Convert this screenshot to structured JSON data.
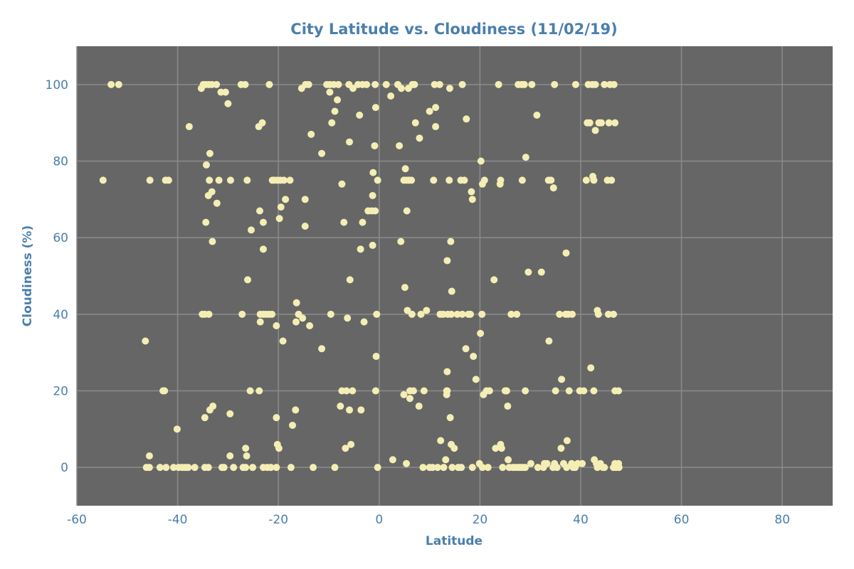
{
  "chart_data": {
    "type": "scatter",
    "title": "City Latitude vs. Cloudiness (11/02/19)",
    "xlabel": "Latitude",
    "ylabel": "Cloudiness (%)",
    "xlim": [
      -60,
      90
    ],
    "ylim": [
      -10,
      110
    ],
    "xticks": [
      -60,
      -40,
      -20,
      0,
      20,
      40,
      60,
      80
    ],
    "yticks": [
      0,
      20,
      40,
      60,
      80,
      100
    ],
    "grid": true,
    "colors": {
      "plot_background": "#666666",
      "grid": "#8c8c8c",
      "marker": "#f5eeb4",
      "text": "#4a7fac"
    },
    "points": [
      [
        -53.2,
        100
      ],
      [
        -51.7,
        100
      ],
      [
        -54.8,
        75
      ],
      [
        -46.4,
        33
      ],
      [
        -46.2,
        0
      ],
      [
        -45.6,
        3
      ],
      [
        -45.5,
        75
      ],
      [
        -45.6,
        0
      ],
      [
        -43.5,
        0
      ],
      [
        -42.9,
        20
      ],
      [
        -42.6,
        20
      ],
      [
        -42.4,
        75
      ],
      [
        -41.8,
        75
      ],
      [
        -42.3,
        0
      ],
      [
        -40.8,
        0
      ],
      [
        -40.1,
        10
      ],
      [
        -39.8,
        0
      ],
      [
        -39.1,
        0
      ],
      [
        -38.5,
        0
      ],
      [
        -37.9,
        0
      ],
      [
        -37.7,
        89
      ],
      [
        -36.6,
        0
      ],
      [
        -35.3,
        99
      ],
      [
        -34.9,
        100
      ],
      [
        -34.4,
        100
      ],
      [
        -33.8,
        100
      ],
      [
        -33.2,
        100
      ],
      [
        -32.3,
        100
      ],
      [
        -31.4,
        98
      ],
      [
        -30.5,
        98
      ],
      [
        -30.0,
        95
      ],
      [
        -27.4,
        100
      ],
      [
        -26.6,
        100
      ],
      [
        -21.8,
        100
      ],
      [
        -34.3,
        79
      ],
      [
        -33.6,
        82
      ],
      [
        -33.7,
        75
      ],
      [
        -33.9,
        71
      ],
      [
        -33.2,
        72
      ],
      [
        -32.2,
        69
      ],
      [
        -31.8,
        75
      ],
      [
        -29.5,
        75
      ],
      [
        -26.2,
        75
      ],
      [
        -34.4,
        64
      ],
      [
        -33.1,
        59
      ],
      [
        -35.1,
        40
      ],
      [
        -34.6,
        40
      ],
      [
        -33.8,
        40
      ],
      [
        -34.6,
        13
      ],
      [
        -33.6,
        15
      ],
      [
        -33.0,
        16
      ],
      [
        -29.6,
        14
      ],
      [
        -34.6,
        0
      ],
      [
        -33.9,
        0
      ],
      [
        -31.2,
        0
      ],
      [
        -30.8,
        0
      ],
      [
        -29.6,
        3
      ],
      [
        -28.9,
        0
      ],
      [
        -27.0,
        0
      ],
      [
        -26.5,
        0
      ],
      [
        -26.5,
        5
      ],
      [
        -26.3,
        3
      ],
      [
        -25.1,
        0
      ],
      [
        -27.2,
        40
      ],
      [
        -26.1,
        49
      ],
      [
        -25.4,
        62
      ],
      [
        -25.6,
        20
      ],
      [
        -23.9,
        89
      ],
      [
        -23.2,
        90
      ],
      [
        -23.7,
        67
      ],
      [
        -23.0,
        64
      ],
      [
        -23.0,
        57
      ],
      [
        -23.6,
        40
      ],
      [
        -23.0,
        40
      ],
      [
        -22.5,
        40
      ],
      [
        -21.9,
        40
      ],
      [
        -21.3,
        40
      ],
      [
        -23.6,
        38
      ],
      [
        -23.8,
        20
      ],
      [
        -23.0,
        0
      ],
      [
        -22.2,
        0
      ],
      [
        -21.5,
        0
      ],
      [
        -20.4,
        0
      ],
      [
        -21.2,
        75
      ],
      [
        -20.8,
        75
      ],
      [
        -20.2,
        75
      ],
      [
        -19.6,
        75
      ],
      [
        -18.9,
        75
      ],
      [
        -17.7,
        75
      ],
      [
        -18.6,
        70
      ],
      [
        -19.5,
        68
      ],
      [
        -19.8,
        65
      ],
      [
        -20.4,
        37
      ],
      [
        -19.1,
        33
      ],
      [
        -20.4,
        13
      ],
      [
        -20.2,
        6
      ],
      [
        -19.9,
        5
      ],
      [
        -17.5,
        0
      ],
      [
        -17.2,
        11
      ],
      [
        -16.6,
        15
      ],
      [
        -16.4,
        43
      ],
      [
        -16.5,
        38
      ],
      [
        -16.0,
        40
      ],
      [
        -15.2,
        39
      ],
      [
        -15.4,
        99
      ],
      [
        -14.6,
        100
      ],
      [
        -14.0,
        100
      ],
      [
        -14.7,
        70
      ],
      [
        -14.7,
        63
      ],
      [
        -13.5,
        87
      ],
      [
        -13.8,
        37
      ],
      [
        -13.1,
        0
      ],
      [
        -11.4,
        82
      ],
      [
        -11.4,
        31
      ],
      [
        -10.4,
        100
      ],
      [
        -9.8,
        100
      ],
      [
        -9.8,
        98
      ],
      [
        -9.0,
        100
      ],
      [
        -8.1,
        100
      ],
      [
        -8.8,
        93
      ],
      [
        -8.3,
        96
      ],
      [
        -9.4,
        90
      ],
      [
        -9.6,
        40
      ],
      [
        -8.8,
        0
      ],
      [
        -7.7,
        16
      ],
      [
        -7.4,
        74
      ],
      [
        -7.0,
        64
      ],
      [
        -7.4,
        20
      ],
      [
        -6.5,
        20
      ],
      [
        -6.3,
        39
      ],
      [
        -6.7,
        5
      ],
      [
        -6.0,
        100
      ],
      [
        -5.9,
        85
      ],
      [
        -5.8,
        49
      ],
      [
        -5.9,
        15
      ],
      [
        -5.6,
        6
      ],
      [
        -5.3,
        20
      ],
      [
        -5.2,
        99
      ],
      [
        -4.2,
        100
      ],
      [
        -3.9,
        92
      ],
      [
        -3.3,
        100
      ],
      [
        -2.5,
        100
      ],
      [
        -3.3,
        64
      ],
      [
        -3.7,
        57
      ],
      [
        -3.0,
        38
      ],
      [
        -3.6,
        15
      ],
      [
        -2.2,
        67
      ],
      [
        -1.3,
        71
      ],
      [
        -1.2,
        77
      ],
      [
        -1.5,
        67
      ],
      [
        -0.8,
        67
      ],
      [
        -0.9,
        84
      ],
      [
        -0.7,
        94
      ],
      [
        -0.8,
        100
      ],
      [
        -1.3,
        58
      ],
      [
        -0.3,
        75
      ],
      [
        -0.7,
        20
      ],
      [
        -0.6,
        29
      ],
      [
        -0.5,
        40
      ],
      [
        -0.3,
        0
      ],
      [
        1.4,
        100
      ],
      [
        2.3,
        97
      ],
      [
        2.7,
        2
      ],
      [
        3.7,
        100
      ],
      [
        4.0,
        84
      ],
      [
        4.4,
        99
      ],
      [
        4.3,
        59
      ],
      [
        4.9,
        75
      ],
      [
        5.4,
        75
      ],
      [
        5.2,
        78
      ],
      [
        5.5,
        67
      ],
      [
        5.9,
        75
      ],
      [
        6.4,
        75
      ],
      [
        5.1,
        47
      ],
      [
        4.9,
        19
      ],
      [
        5.6,
        41
      ],
      [
        6.1,
        20
      ],
      [
        6.1,
        18
      ],
      [
        5.4,
        1
      ],
      [
        6.8,
        20
      ],
      [
        6.5,
        40
      ],
      [
        6.6,
        100
      ],
      [
        7.0,
        100
      ],
      [
        7.2,
        90
      ],
      [
        5.8,
        99
      ],
      [
        7.9,
        16
      ],
      [
        8.3,
        40
      ],
      [
        8.0,
        86
      ],
      [
        8.9,
        20
      ],
      [
        9.4,
        41
      ],
      [
        8.7,
        0
      ],
      [
        10.0,
        93
      ],
      [
        10.0,
        0
      ],
      [
        10.6,
        0
      ],
      [
        11.2,
        94
      ],
      [
        11.2,
        89
      ],
      [
        10.8,
        75
      ],
      [
        11.0,
        100
      ],
      [
        11.6,
        0
      ],
      [
        12.0,
        100
      ],
      [
        12.1,
        40
      ],
      [
        12.2,
        7
      ],
      [
        12.7,
        40
      ],
      [
        12.8,
        0
      ],
      [
        13.2,
        2
      ],
      [
        13.4,
        20
      ],
      [
        13.5,
        20
      ],
      [
        13.5,
        25
      ],
      [
        13.4,
        19
      ],
      [
        13.5,
        54
      ],
      [
        13.6,
        40
      ],
      [
        13.9,
        75
      ],
      [
        14.0,
        99
      ],
      [
        14.2,
        59
      ],
      [
        14.4,
        46
      ],
      [
        14.3,
        40
      ],
      [
        14.3,
        6
      ],
      [
        14.5,
        0
      ],
      [
        14.9,
        5
      ],
      [
        15.7,
        0
      ],
      [
        16.3,
        0
      ],
      [
        14.1,
        13
      ],
      [
        15.5,
        40
      ],
      [
        16.5,
        40
      ],
      [
        16.5,
        100
      ],
      [
        16.9,
        75
      ],
      [
        16.2,
        75
      ],
      [
        17.2,
        31
      ],
      [
        17.3,
        91
      ],
      [
        17.7,
        40
      ],
      [
        18.1,
        40
      ],
      [
        18.3,
        72
      ],
      [
        18.5,
        70
      ],
      [
        18.5,
        0
      ],
      [
        18.7,
        29
      ],
      [
        19.2,
        23
      ],
      [
        19.9,
        1
      ],
      [
        20.1,
        35
      ],
      [
        20.2,
        80
      ],
      [
        20.5,
        74
      ],
      [
        20.9,
        75
      ],
      [
        20.4,
        40
      ],
      [
        20.5,
        0
      ],
      [
        20.7,
        19
      ],
      [
        21.3,
        20
      ],
      [
        21.9,
        20
      ],
      [
        21.6,
        0
      ],
      [
        22.8,
        49
      ],
      [
        23.1,
        5
      ],
      [
        23.7,
        100
      ],
      [
        24.0,
        74
      ],
      [
        24.1,
        75
      ],
      [
        24.1,
        6
      ],
      [
        24.3,
        5
      ],
      [
        24.5,
        0
      ],
      [
        25.0,
        20
      ],
      [
        25.3,
        20
      ],
      [
        25.5,
        16
      ],
      [
        25.6,
        2
      ],
      [
        25.8,
        0
      ],
      [
        26.2,
        40
      ],
      [
        26.5,
        0
      ],
      [
        27.0,
        0
      ],
      [
        27.3,
        40
      ],
      [
        27.6,
        0
      ],
      [
        28.0,
        0
      ],
      [
        28.5,
        0
      ],
      [
        29.0,
        0
      ],
      [
        27.6,
        100
      ],
      [
        28.3,
        100
      ],
      [
        28.8,
        100
      ],
      [
        28.4,
        75
      ],
      [
        29.1,
        81
      ],
      [
        29.0,
        20
      ],
      [
        29.6,
        51
      ],
      [
        30.1,
        1
      ],
      [
        30.3,
        100
      ],
      [
        31.3,
        92
      ],
      [
        31.5,
        0
      ],
      [
        32.2,
        51
      ],
      [
        32.6,
        0
      ],
      [
        32.8,
        1
      ],
      [
        33.3,
        1
      ],
      [
        33.7,
        33
      ],
      [
        33.6,
        75
      ],
      [
        34.1,
        75
      ],
      [
        34.5,
        0
      ],
      [
        34.6,
        73
      ],
      [
        34.8,
        1
      ],
      [
        34.8,
        100
      ],
      [
        35.0,
        20
      ],
      [
        35.3,
        0
      ],
      [
        35.8,
        40
      ],
      [
        36.1,
        5
      ],
      [
        36.2,
        23
      ],
      [
        36.6,
        1
      ],
      [
        37.1,
        56
      ],
      [
        37.0,
        40
      ],
      [
        37.2,
        0
      ],
      [
        37.3,
        7
      ],
      [
        37.5,
        40
      ],
      [
        37.7,
        20
      ],
      [
        38.2,
        1
      ],
      [
        38.3,
        40
      ],
      [
        38.5,
        0
      ],
      [
        38.9,
        0
      ],
      [
        39.0,
        100
      ],
      [
        39.4,
        1
      ],
      [
        39.8,
        20
      ],
      [
        40.3,
        1
      ],
      [
        40.6,
        20
      ],
      [
        41.1,
        75
      ],
      [
        41.3,
        90
      ],
      [
        41.8,
        90
      ],
      [
        42.0,
        26
      ],
      [
        41.5,
        100
      ],
      [
        42.3,
        100
      ],
      [
        42.4,
        76
      ],
      [
        42.6,
        75
      ],
      [
        42.6,
        20
      ],
      [
        42.9,
        88
      ],
      [
        42.9,
        100
      ],
      [
        42.7,
        2
      ],
      [
        43.1,
        1
      ],
      [
        43.3,
        0
      ],
      [
        43.3,
        41
      ],
      [
        43.5,
        40
      ],
      [
        43.6,
        90
      ],
      [
        43.9,
        1
      ],
      [
        44.1,
        90
      ],
      [
        44.4,
        0
      ],
      [
        44.7,
        100
      ],
      [
        44.7,
        0
      ],
      [
        45.3,
        75
      ],
      [
        45.5,
        40
      ],
      [
        45.6,
        90
      ],
      [
        45.8,
        100
      ],
      [
        46.1,
        75
      ],
      [
        46.5,
        40
      ],
      [
        46.6,
        100
      ],
      [
        46.8,
        90
      ],
      [
        46.8,
        20
      ],
      [
        46.5,
        0
      ],
      [
        46.8,
        1
      ],
      [
        47.0,
        0
      ],
      [
        47.5,
        1
      ],
      [
        47.6,
        0
      ],
      [
        47.5,
        20
      ]
    ]
  }
}
